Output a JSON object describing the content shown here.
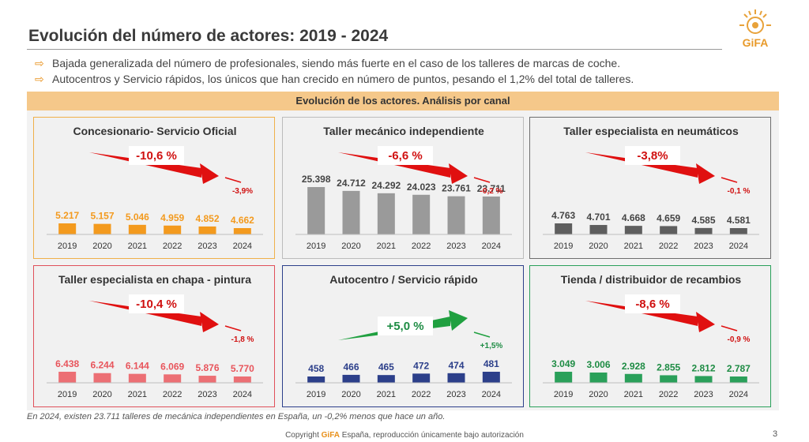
{
  "header": {
    "title": "Evolución del número de actores: 2019 - 2024",
    "logo_text": "GiFA"
  },
  "bullets": [
    "Bajada generalizada del número de profesionales, siendo más fuerte en el caso de los talleres de marcas de coche.",
    "Autocentros y Servicio rápidos, los únicos que han crecido en número de puntos, pesando el 1,2% del total de talleres."
  ],
  "band_title": "Evolución de los actores. Análisis por canal",
  "footnote": "En 2024, existen 23.711 talleres de mecánica independientes en España, un -0,2% menos que hace un año.",
  "copyright": {
    "prefix": "Copyright ",
    "brand": "GiFA",
    "suffix": " España, reproducción únicamente bajo autorización"
  },
  "page_number": "3",
  "chart_data": [
    {
      "type": "bar",
      "title": "Concesionario- Servicio Oficial",
      "categories": [
        "2019",
        "2020",
        "2021",
        "2022",
        "2023",
        "2024"
      ],
      "values": [
        5217,
        5157,
        5046,
        4959,
        4852,
        4662
      ],
      "value_labels": [
        "5.217",
        "5.157",
        "5.046",
        "4.959",
        "4.852",
        "4.662"
      ],
      "total_change": "-10,6 %",
      "last_change": "-3,9%",
      "bar_color": "#f39a1e",
      "label_color": "#f39a1e",
      "border_color": "#f0b04a",
      "arrow_color": "#e01010",
      "trend": "down"
    },
    {
      "type": "bar",
      "title": "Taller mecánico independiente",
      "categories": [
        "2019",
        "2020",
        "2021",
        "2022",
        "2023",
        "2024"
      ],
      "values": [
        25398,
        24712,
        24292,
        24023,
        23761,
        23711
      ],
      "value_labels": [
        "25.398",
        "24.712",
        "24.292",
        "24.023",
        "23.761",
        "23.711"
      ],
      "total_change": "-6,6 %",
      "last_change": "-0,2 %",
      "bar_color": "#9a9a9a",
      "label_color": "#444444",
      "border_color": "#bcbcbc",
      "arrow_color": "#e01010",
      "trend": "down"
    },
    {
      "type": "bar",
      "title": "Taller especialista en neumáticos",
      "categories": [
        "2019",
        "2020",
        "2021",
        "2022",
        "2023",
        "2024"
      ],
      "values": [
        4763,
        4701,
        4668,
        4659,
        4585,
        4581
      ],
      "value_labels": [
        "4.763",
        "4.701",
        "4.668",
        "4.659",
        "4.585",
        "4.581"
      ],
      "total_change": "-3,8%",
      "last_change": "-0,1 %",
      "bar_color": "#5e5e5e",
      "label_color": "#444444",
      "border_color": "#6e6e6e",
      "arrow_color": "#e01010",
      "trend": "down"
    },
    {
      "type": "bar",
      "title": "Taller especialista en chapa - pintura",
      "categories": [
        "2019",
        "2020",
        "2021",
        "2022",
        "2023",
        "2024"
      ],
      "values": [
        6438,
        6244,
        6144,
        6069,
        5876,
        5770
      ],
      "value_labels": [
        "6.438",
        "6.244",
        "6.144",
        "6.069",
        "5.876",
        "5.770"
      ],
      "total_change": "-10,4 %",
      "last_change": "-1,8 %",
      "bar_color": "#ec6f74",
      "label_color": "#e8555c",
      "border_color": "#e0505a",
      "arrow_color": "#e01010",
      "trend": "down"
    },
    {
      "type": "bar",
      "title": "Autocentro / Servicio rápido",
      "categories": [
        "2019",
        "2020",
        "2021",
        "2022",
        "2023",
        "2024"
      ],
      "values": [
        458,
        466,
        465,
        472,
        474,
        481
      ],
      "value_labels": [
        "458",
        "466",
        "465",
        "472",
        "474",
        "481"
      ],
      "total_change": "+5,0 %",
      "last_change": "+1,5%",
      "bar_color": "#2c3f8a",
      "label_color": "#2c3f8a",
      "border_color": "#2c3f8a",
      "arrow_color": "#20a040",
      "trend": "up"
    },
    {
      "type": "bar",
      "title": "Tienda / distribuidor de recambios",
      "categories": [
        "2019",
        "2020",
        "2021",
        "2022",
        "2023",
        "2024"
      ],
      "values": [
        3049,
        3006,
        2928,
        2855,
        2812,
        2787
      ],
      "value_labels": [
        "3.049",
        "3.006",
        "2.928",
        "2.855",
        "2.812",
        "2.787"
      ],
      "total_change": "-8,6 %",
      "last_change": "-0,9 %",
      "bar_color": "#2aa05a",
      "label_color": "#1e8c44",
      "border_color": "#2aa05a",
      "arrow_color": "#e01010",
      "trend": "down"
    }
  ]
}
